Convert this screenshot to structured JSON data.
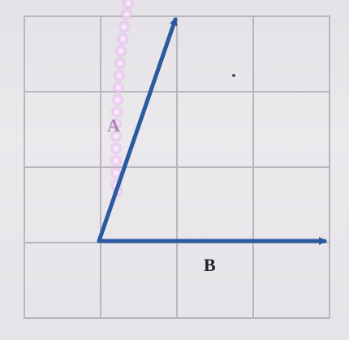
{
  "colors": {
    "background": "#e9e7ea",
    "grid": "#b8b6ba",
    "vector": "#2a5aa0",
    "label": "#222222",
    "highlight": "#e8a8f0"
  },
  "vectors": [
    {
      "id": "A",
      "label": "A",
      "dx": 1,
      "dy": 3
    },
    {
      "id": "B",
      "label": "B",
      "dx": 3,
      "dy": 0
    }
  ],
  "grid": {
    "cols": 4,
    "rows": 4
  }
}
